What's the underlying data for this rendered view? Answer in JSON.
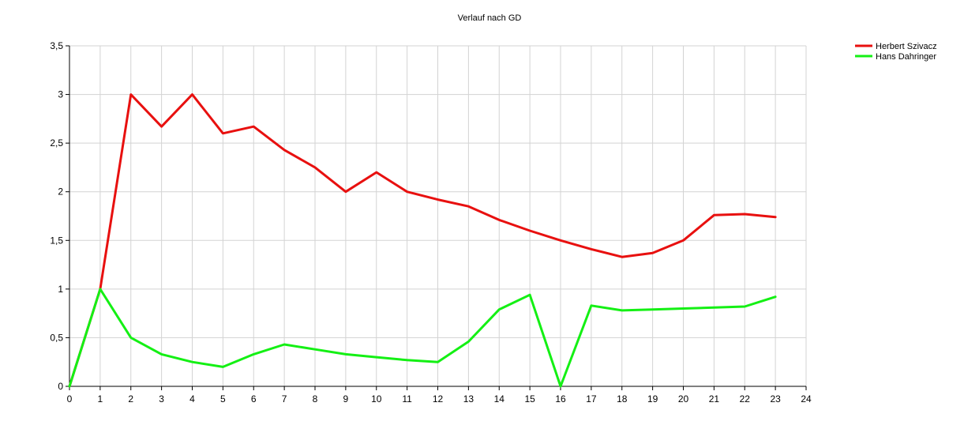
{
  "chart_data": {
    "type": "line",
    "title": "Verlauf nach GD",
    "xlabel": "",
    "ylabel": "",
    "xlim": [
      0,
      24
    ],
    "ylim": [
      0,
      3.5
    ],
    "x_ticks": [
      0,
      1,
      2,
      3,
      4,
      5,
      6,
      7,
      8,
      9,
      10,
      11,
      12,
      13,
      14,
      15,
      16,
      17,
      18,
      19,
      20,
      21,
      22,
      23,
      24
    ],
    "x_tick_labels": [
      "0",
      "1",
      "2",
      "3",
      "4",
      "5",
      "6",
      "7",
      "8",
      "9",
      "10",
      "11",
      "12",
      "13",
      "14",
      "15",
      "16",
      "17",
      "18",
      "19",
      "20",
      "21",
      "22",
      "23",
      "24"
    ],
    "y_ticks": [
      0,
      0.5,
      1,
      1.5,
      2,
      2.5,
      3,
      3.5
    ],
    "y_tick_labels": [
      "0",
      "0,5",
      "1",
      "1,5",
      "2",
      "2,5",
      "3",
      "3,5"
    ],
    "grid": true,
    "legend_position": "top-right",
    "x": [
      0,
      1,
      2,
      3,
      4,
      5,
      6,
      7,
      8,
      9,
      10,
      11,
      12,
      13,
      14,
      15,
      16,
      17,
      18,
      19,
      20,
      21,
      22,
      23
    ],
    "series": [
      {
        "name": "Herbert Szivacz",
        "color": "#e8100f",
        "values": [
          0,
          1.0,
          3.0,
          2.67,
          3.0,
          2.6,
          2.67,
          2.43,
          2.25,
          2.0,
          2.2,
          2.0,
          1.92,
          1.85,
          1.71,
          1.6,
          1.5,
          1.41,
          1.33,
          1.37,
          1.5,
          1.76,
          1.77,
          1.74
        ]
      },
      {
        "name": "Hans Dahringer",
        "color": "#14f014",
        "values": [
          0,
          1.0,
          0.5,
          0.33,
          0.25,
          0.2,
          0.33,
          0.43,
          0.38,
          0.33,
          0.3,
          0.27,
          0.25,
          0.46,
          0.79,
          0.94,
          0.0,
          0.83,
          0.78,
          0.79,
          0.8,
          0.81,
          0.82,
          0.92
        ]
      }
    ]
  }
}
